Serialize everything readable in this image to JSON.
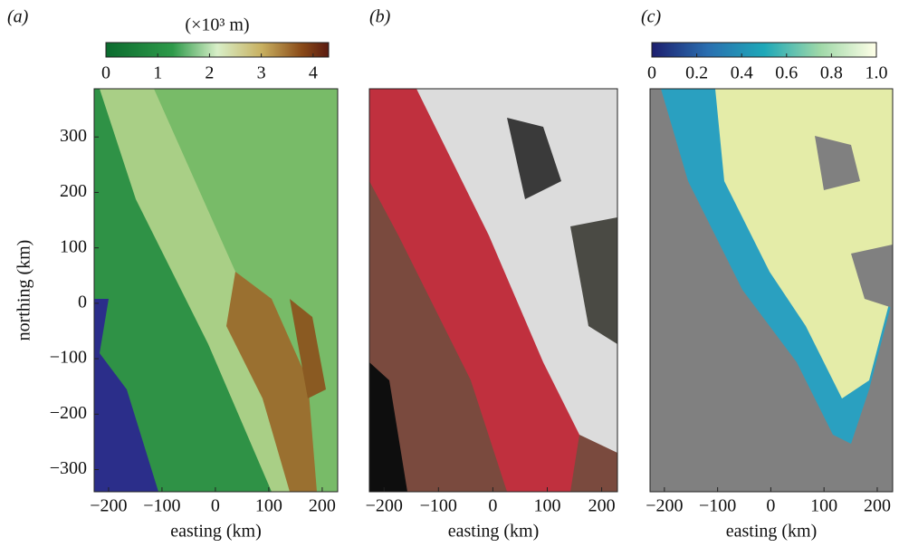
{
  "panels": [
    {
      "label": "(a)",
      "xlabel": "easting (km)",
      "ylabel": "northing (km)",
      "colorbar": {
        "title": "(×10³ m)",
        "lim": [
          0,
          4.3
        ],
        "ticks": [
          0,
          1,
          2,
          3,
          4
        ]
      },
      "xlim": [
        -227,
        229
      ],
      "ylim": [
        -340,
        387
      ],
      "xticks": [
        {
          "value": -200,
          "label": "−200"
        },
        {
          "value": -100,
          "label": "−100"
        },
        0,
        100,
        200
      ],
      "yticks": [
        300,
        200,
        100,
        0,
        {
          "value": -100,
          "label": "−100"
        },
        {
          "value": -200,
          "label": "−200"
        },
        {
          "value": -300,
          "label": "−300"
        }
      ]
    },
    {
      "label": "(b)",
      "xlabel": "easting (km)",
      "xlim": [
        -227,
        229
      ],
      "xticks": [
        {
          "value": -200,
          "label": "−200"
        },
        {
          "value": -100,
          "label": "−100"
        },
        0,
        100,
        200
      ]
    },
    {
      "label": "(c)",
      "xlabel": "easting (km)",
      "colorbar": {
        "lim": [
          0,
          1
        ],
        "ticks": [
          0,
          0.2,
          0.4,
          0.6,
          0.8,
          {
            "value": 1,
            "label": "1.0"
          }
        ]
      },
      "xlim": [
        -227,
        229
      ],
      "xticks": [
        {
          "value": -200,
          "label": "−200"
        },
        {
          "value": -100,
          "label": "−100"
        },
        0,
        100,
        200
      ]
    }
  ]
}
